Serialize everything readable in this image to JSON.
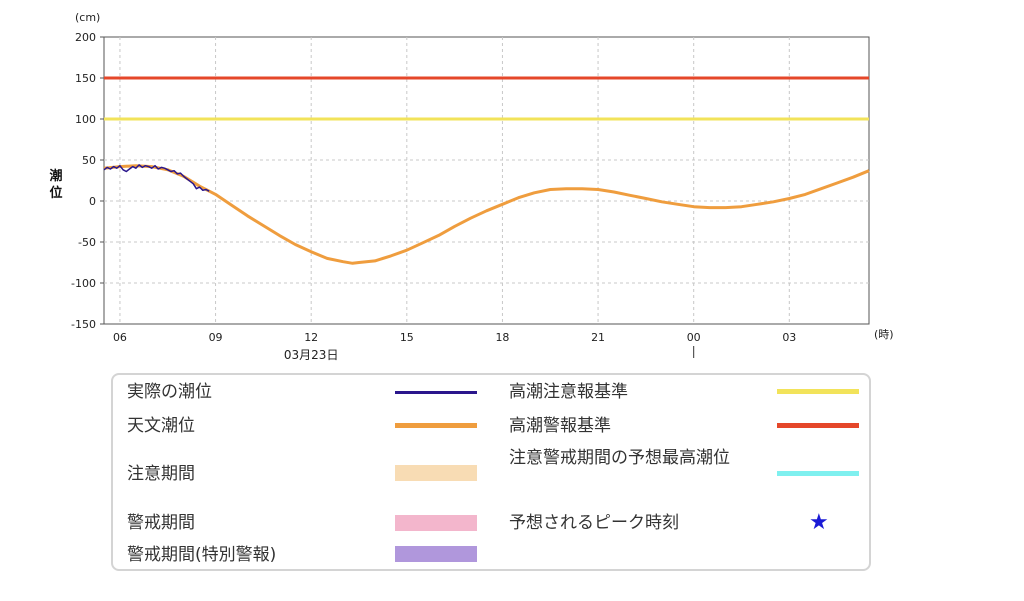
{
  "chart_data": {
    "type": "line",
    "y_unit": "(cm)",
    "x_unit": "(時)",
    "ylabel": "潮位",
    "ylim": [
      -150,
      200
    ],
    "yticks": [
      200,
      150,
      100,
      50,
      0,
      -50,
      -100,
      -150
    ],
    "xlim_hours": [
      5.5,
      29.5
    ],
    "xticks": [
      {
        "h": 6,
        "label": "06"
      },
      {
        "h": 9,
        "label": "09"
      },
      {
        "h": 12,
        "label": "12"
      },
      {
        "h": 15,
        "label": "15"
      },
      {
        "h": 18,
        "label": "18"
      },
      {
        "h": 21,
        "label": "21"
      },
      {
        "h": 24,
        "label": "00"
      },
      {
        "h": 27,
        "label": "03"
      }
    ],
    "date_label": "03月23日",
    "date_label_h": 12,
    "day_marker_h": 24,
    "thresholds": [
      {
        "name": "高潮警報基準",
        "value": 150,
        "color": "#e5472a"
      },
      {
        "name": "高潮注意報基準",
        "value": 100,
        "color": "#f2e35a"
      }
    ],
    "series": [
      {
        "name": "天文潮位",
        "color": "#ef9d3e",
        "points": [
          [
            5.5,
            40
          ],
          [
            6,
            42
          ],
          [
            6.5,
            43
          ],
          [
            7,
            42
          ],
          [
            7.5,
            38
          ],
          [
            8,
            30
          ],
          [
            8.5,
            18
          ],
          [
            9,
            8
          ],
          [
            9.5,
            -5
          ],
          [
            10,
            -18
          ],
          [
            10.5,
            -30
          ],
          [
            11,
            -42
          ],
          [
            11.5,
            -53
          ],
          [
            12,
            -62
          ],
          [
            12.5,
            -70
          ],
          [
            13,
            -74
          ],
          [
            13.3,
            -76
          ],
          [
            13.5,
            -75
          ],
          [
            14,
            -73
          ],
          [
            14.5,
            -67
          ],
          [
            15,
            -60
          ],
          [
            15.5,
            -51
          ],
          [
            16,
            -42
          ],
          [
            16.5,
            -31
          ],
          [
            17,
            -21
          ],
          [
            17.5,
            -12
          ],
          [
            18,
            -4
          ],
          [
            18.5,
            4
          ],
          [
            19,
            10
          ],
          [
            19.5,
            14
          ],
          [
            20,
            15
          ],
          [
            20.5,
            15
          ],
          [
            21,
            14
          ],
          [
            21.5,
            11
          ],
          [
            22,
            7
          ],
          [
            22.5,
            3
          ],
          [
            23,
            -1
          ],
          [
            23.5,
            -4
          ],
          [
            24,
            -7
          ],
          [
            24.5,
            -8
          ],
          [
            25,
            -8
          ],
          [
            25.5,
            -7
          ],
          [
            26,
            -4
          ],
          [
            26.5,
            -1
          ],
          [
            27,
            3
          ],
          [
            27.5,
            8
          ],
          [
            28,
            15
          ],
          [
            28.5,
            22
          ],
          [
            29,
            29
          ],
          [
            29.5,
            37
          ]
        ]
      },
      {
        "name": "実際の潮位",
        "color": "#2a168c",
        "points": [
          [
            5.5,
            38
          ],
          [
            5.6,
            41
          ],
          [
            5.7,
            39
          ],
          [
            5.8,
            42
          ],
          [
            5.9,
            40
          ],
          [
            6.0,
            43
          ],
          [
            6.1,
            38
          ],
          [
            6.2,
            36
          ],
          [
            6.3,
            39
          ],
          [
            6.4,
            42
          ],
          [
            6.5,
            40
          ],
          [
            6.6,
            44
          ],
          [
            6.7,
            41
          ],
          [
            6.8,
            43
          ],
          [
            6.9,
            42
          ],
          [
            7.0,
            40
          ],
          [
            7.1,
            43
          ],
          [
            7.2,
            39
          ],
          [
            7.3,
            41
          ],
          [
            7.4,
            40
          ],
          [
            7.5,
            38
          ],
          [
            7.6,
            36
          ],
          [
            7.7,
            37
          ],
          [
            7.8,
            33
          ],
          [
            7.9,
            34
          ],
          [
            8.0,
            30
          ],
          [
            8.1,
            27
          ],
          [
            8.2,
            24
          ],
          [
            8.3,
            21
          ],
          [
            8.4,
            15
          ],
          [
            8.5,
            17
          ],
          [
            8.6,
            13
          ],
          [
            8.7,
            14
          ],
          [
            8.8,
            12
          ]
        ]
      }
    ]
  },
  "legend": {
    "items": [
      {
        "label": "実際の潮位",
        "kind": "line",
        "color": "#2a168c"
      },
      {
        "label": "天文潮位",
        "kind": "line",
        "color": "#ef9d3e"
      },
      {
        "label": "注意期間",
        "kind": "box",
        "color": "#f8dcb4"
      },
      {
        "label": "警戒期間",
        "kind": "box",
        "color": "#f3b6cc"
      },
      {
        "label": "警戒期間(特別警報)",
        "kind": "box",
        "color": "#b097dc"
      },
      {
        "label": "高潮注意報基準",
        "kind": "line",
        "color": "#f2e35a"
      },
      {
        "label": "高潮警報基準",
        "kind": "line",
        "color": "#e5472a"
      },
      {
        "label": "注意警戒期間の予想最高潮位",
        "kind": "line",
        "color": "#7ff0ef"
      },
      {
        "label": "予想されるピーク時刻",
        "kind": "star",
        "color": "#1a1ad6",
        "glyph": "★"
      }
    ]
  }
}
